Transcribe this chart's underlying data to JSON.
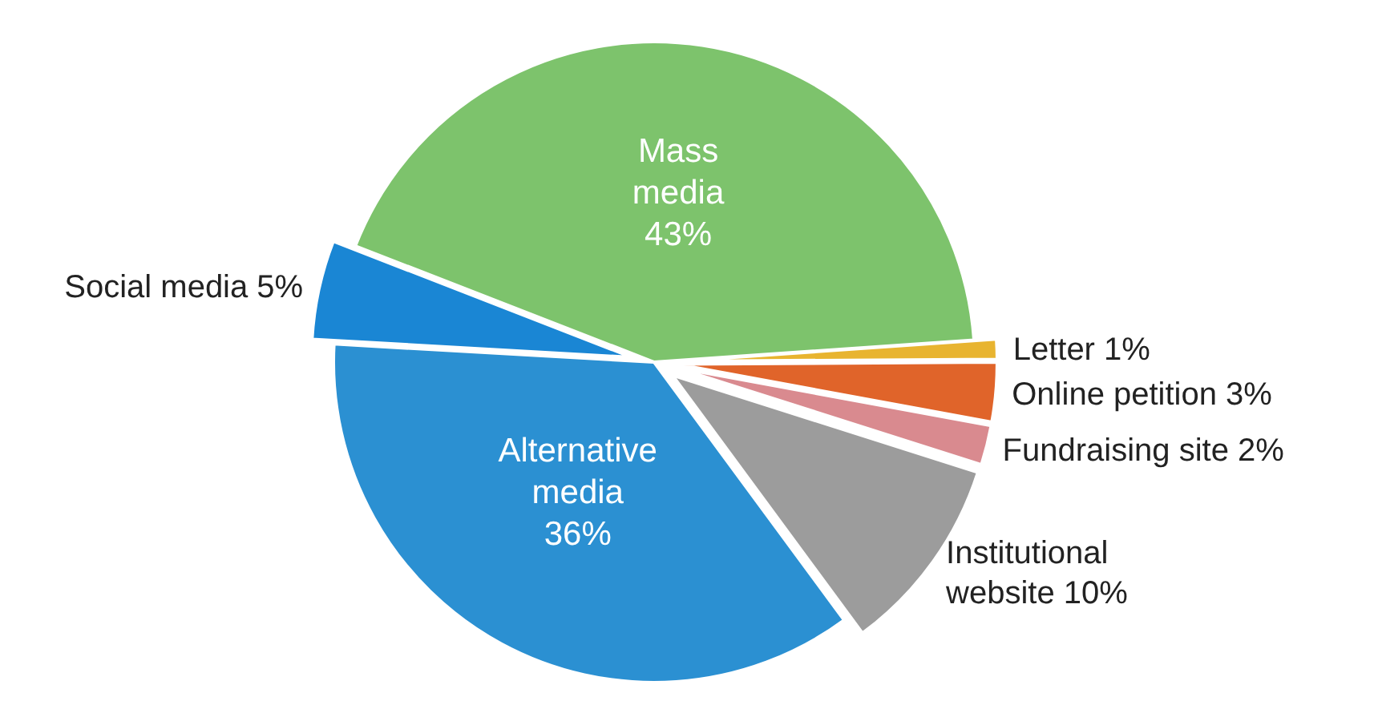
{
  "chart_data": {
    "type": "pie",
    "categories": [
      "Mass media",
      "Letter",
      "Online petition",
      "Fundraising site",
      "Institutional website",
      "Alternative media",
      "Social media"
    ],
    "values": [
      43,
      1,
      3,
      2,
      10,
      36,
      5
    ],
    "value_labels": [
      "43%",
      "1%",
      "3%",
      "2%",
      "10%",
      "36%",
      "5%"
    ],
    "colors": [
      "#7dc36c",
      "#e8b430",
      "#e0642a",
      "#d98a8f",
      "#9c9c9c",
      "#2b90d2",
      "#1a86d4"
    ]
  }
}
